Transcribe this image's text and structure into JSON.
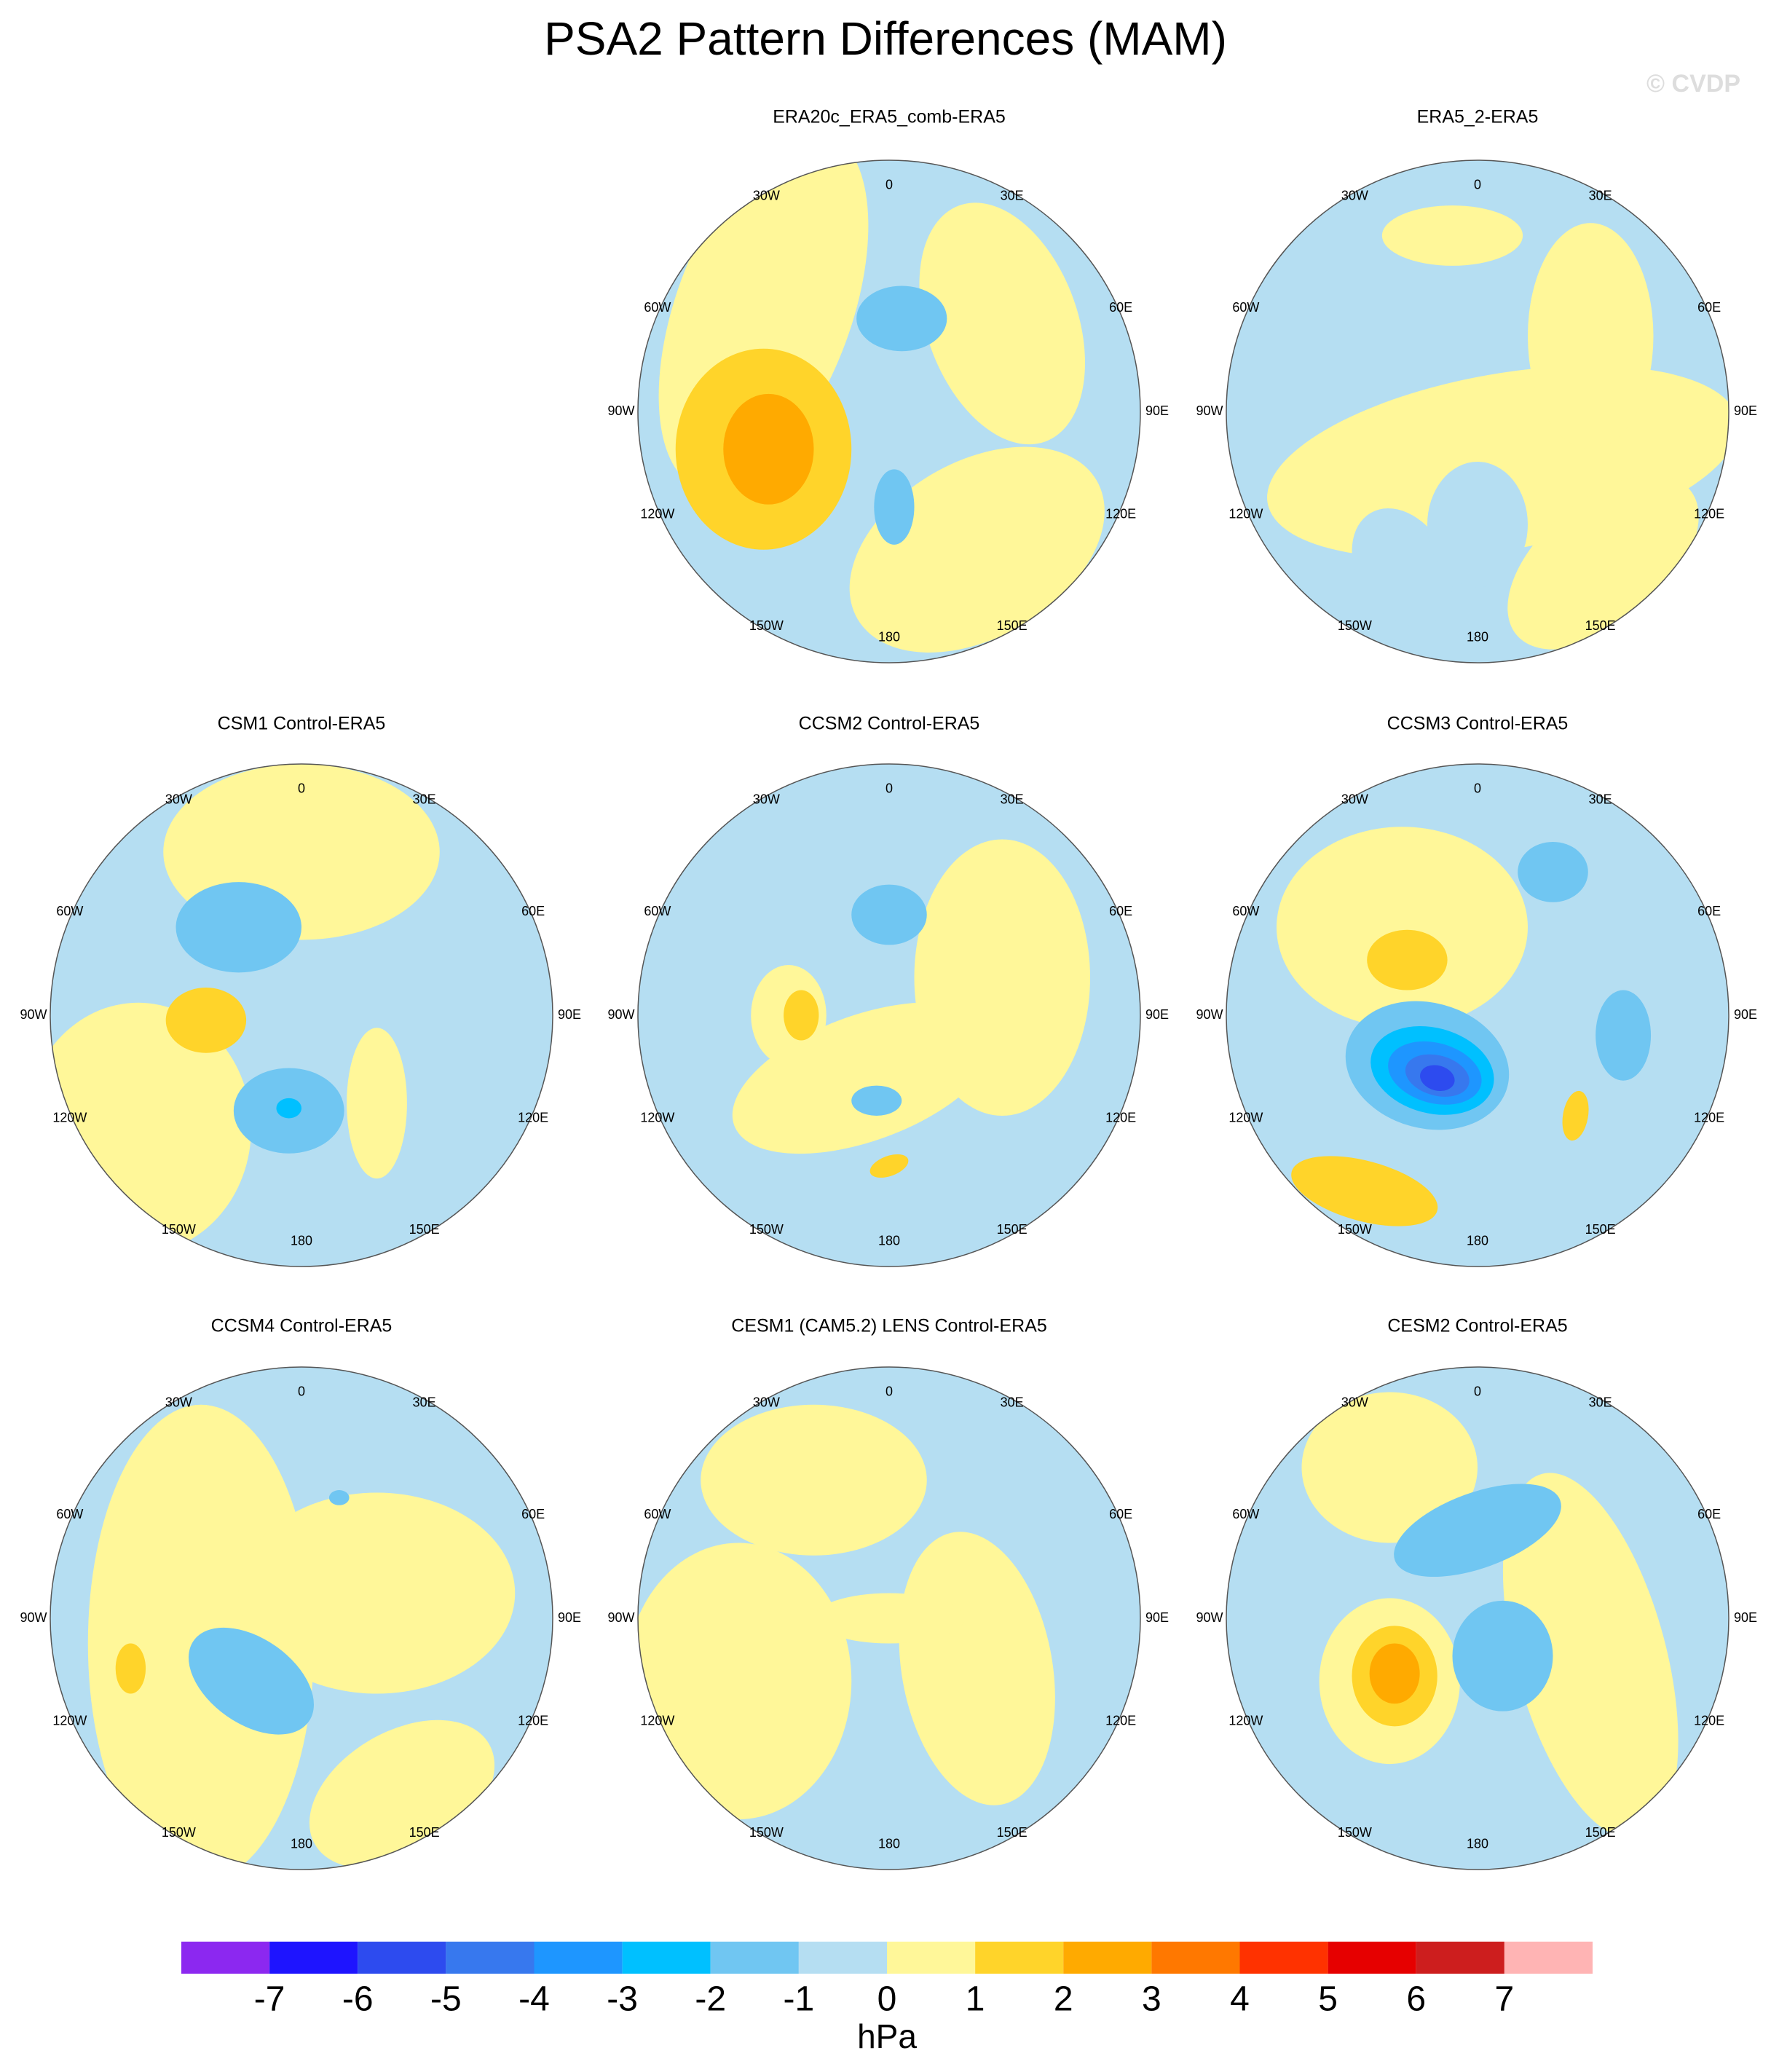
{
  "title": "PSA2 Pattern Differences (MAM)",
  "watermark": "© CVDP",
  "lon_labels": [
    "0",
    "30E",
    "60E",
    "90E",
    "120E",
    "150E",
    "180",
    "150W",
    "120W",
    "90W",
    "60W",
    "30W"
  ],
  "panels": [
    {
      "title": "ERA20c_ERA5_comb-ERA5"
    },
    {
      "title": "ERA5_2-ERA5"
    },
    {
      "title": "CSM1 Control-ERA5"
    },
    {
      "title": "CCSM2 Control-ERA5"
    },
    {
      "title": "CCSM3 Control-ERA5"
    },
    {
      "title": "CCSM4 Control-ERA5"
    },
    {
      "title": "CESM1 (CAM5.2) LENS Control-ERA5"
    },
    {
      "title": "CESM2 Control-ERA5"
    }
  ],
  "colorbar": {
    "colors": [
      "#8c28f0",
      "#1e14ff",
      "#2d4bef",
      "#3778ee",
      "#1e96ff",
      "#00c0ff",
      "#70c6f2",
      "#b5def2",
      "#fff799",
      "#ffd42a",
      "#ffaa00",
      "#ff7800",
      "#ff3200",
      "#e60000",
      "#cd1e1e",
      "#ffb4b4"
    ],
    "ticks": [
      -7,
      -6,
      -5,
      -4,
      -3,
      -2,
      -1,
      0,
      1,
      2,
      3,
      4,
      5,
      6,
      7
    ],
    "unit": "hPa"
  }
}
